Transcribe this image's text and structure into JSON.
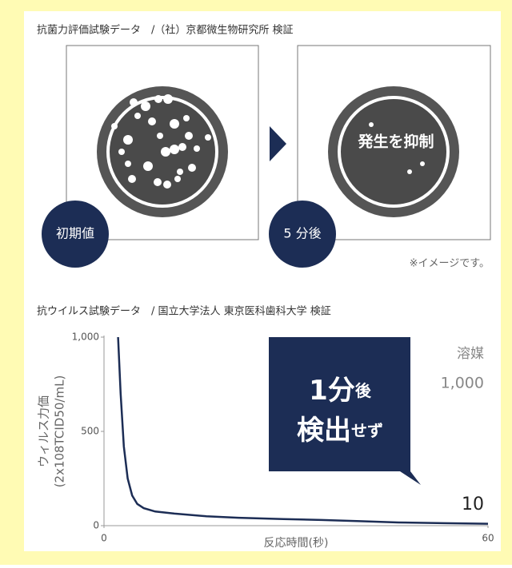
{
  "antibacterial": {
    "title": "抗菌力評価試験データ　/（社）京都微生物研究所 検証",
    "before_label": "初期値",
    "after_label": "5 分後",
    "after_text": "発生を抑制",
    "note": "※イメージです。"
  },
  "chart_data": {
    "type": "line",
    "title": "抗ウイルス試験データ　/ 国立大学法人 東京医科歯科大学 検証",
    "y_label": [
      "ウィルス力価",
      "(2x108TCID50/mL)"
    ],
    "x_label": "反応時間(秒)",
    "x": [
      2.2,
      2.6,
      3.1,
      3.7,
      4.4,
      5.2,
      6.2,
      8,
      11,
      16,
      21,
      28,
      34,
      40,
      46,
      53,
      60
    ],
    "values": [
      1000,
      700,
      420,
      250,
      160,
      115,
      93,
      75,
      64,
      50,
      42,
      35,
      30,
      24,
      17,
      13,
      10
    ],
    "color": "#1c2d55",
    "xlim": [
      0,
      60
    ],
    "xticks": [
      0,
      60
    ],
    "ylim": [
      0,
      1000
    ],
    "yticks": [
      0,
      500,
      {
        "value": 1000,
        "label": "1,000"
      }
    ],
    "annotations": {
      "result_1": "1分",
      "result_1_small": "後",
      "result_2": "検出",
      "result_2_small": "せず",
      "solvent": "溶媒",
      "solvent_value": "1,000"
    }
  }
}
